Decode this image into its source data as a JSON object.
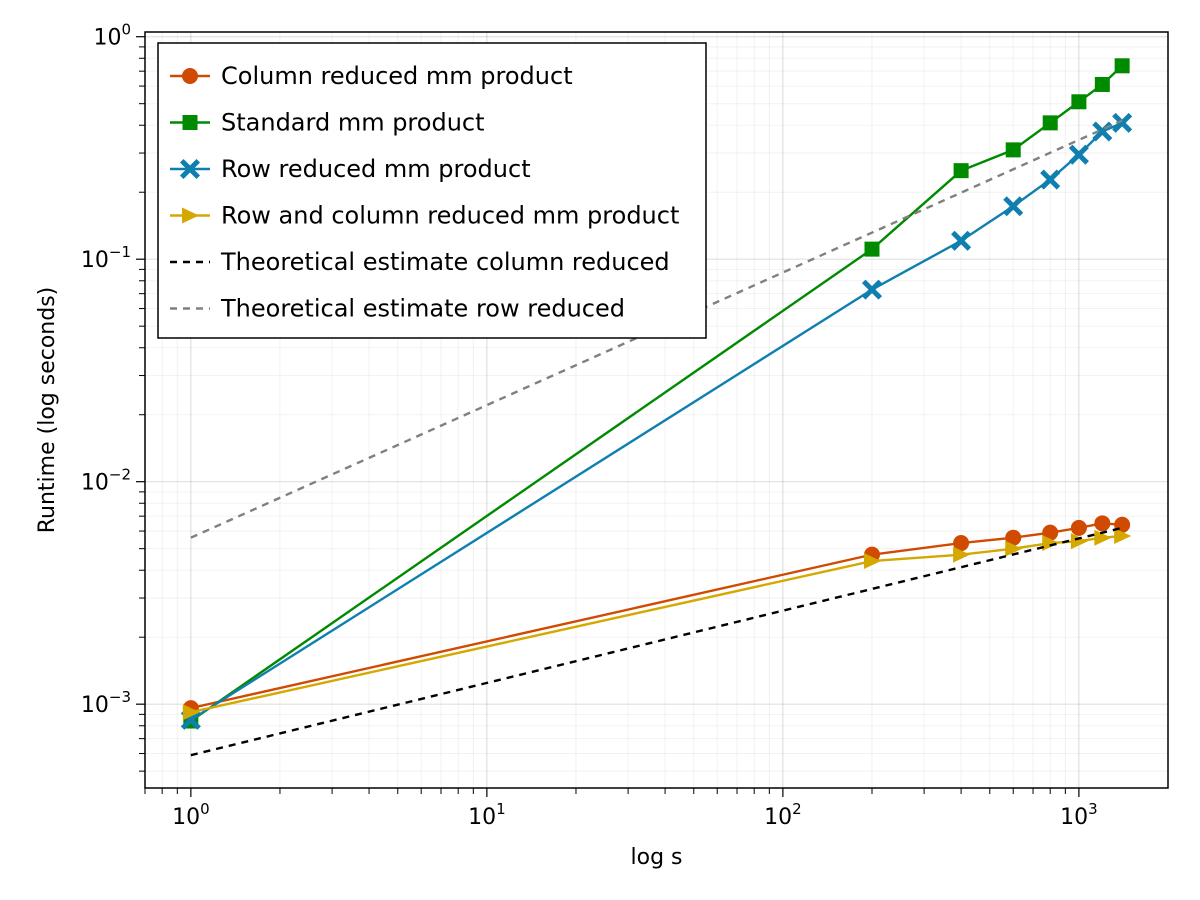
{
  "chart_data": {
    "type": "line",
    "title": "",
    "xlabel": "log s",
    "ylabel": "Runtime (log seconds)",
    "xscale": "log",
    "yscale": "log",
    "xlim": [
      0.7,
      2000
    ],
    "ylim": [
      0.00042,
      1.05
    ],
    "grid": true,
    "legend_position": "top-left",
    "x_ticks": [
      {
        "value": 1,
        "base": "10",
        "exp": "0"
      },
      {
        "value": 10,
        "base": "10",
        "exp": "1"
      },
      {
        "value": 100,
        "base": "10",
        "exp": "2"
      },
      {
        "value": 1000,
        "base": "10",
        "exp": "3"
      }
    ],
    "y_ticks": [
      {
        "value": 0.001,
        "base": "10",
        "exp": "−3"
      },
      {
        "value": 0.01,
        "base": "10",
        "exp": "−2"
      },
      {
        "value": 0.1,
        "base": "10",
        "exp": "−1"
      },
      {
        "value": 1,
        "base": "10",
        "exp": "0"
      }
    ],
    "series": [
      {
        "name": "Column reduced mm product",
        "color": "#d04a02",
        "style": "solid",
        "marker": "circle",
        "x": [
          1,
          200,
          400,
          600,
          800,
          1000,
          1200,
          1400
        ],
        "y": [
          0.00096,
          0.0047,
          0.0053,
          0.0056,
          0.0059,
          0.0062,
          0.0065,
          0.0064
        ]
      },
      {
        "name": "Standard mm product",
        "color": "#008a00",
        "style": "solid",
        "marker": "square",
        "x": [
          1,
          200,
          400,
          600,
          800,
          1000,
          1200,
          1400
        ],
        "y": [
          0.00084,
          0.111,
          0.25,
          0.31,
          0.41,
          0.51,
          0.61,
          0.74
        ]
      },
      {
        "name": "Row reduced mm product",
        "color": "#0f7fb0",
        "style": "solid",
        "marker": "x",
        "x": [
          1,
          200,
          400,
          600,
          800,
          1000,
          1200,
          1400
        ],
        "y": [
          0.00085,
          0.073,
          0.121,
          0.173,
          0.228,
          0.295,
          0.375,
          0.41
        ]
      },
      {
        "name": "Row and column reduced mm product",
        "color": "#d4a800",
        "style": "solid",
        "marker": "triangle-right",
        "x": [
          1,
          200,
          400,
          600,
          800,
          1000,
          1200,
          1400
        ],
        "y": [
          0.00092,
          0.0044,
          0.0047,
          0.005,
          0.0053,
          0.0054,
          0.0056,
          0.0057
        ]
      },
      {
        "name": "Theoretical estimate column reduced",
        "color": "#000000",
        "style": "dashed",
        "marker": "none",
        "x": [
          1,
          1400
        ],
        "y": [
          0.00059,
          0.0062
        ]
      },
      {
        "name": "Theoretical estimate row reduced",
        "color": "#808080",
        "style": "dashed",
        "marker": "none",
        "x": [
          1,
          1400
        ],
        "y": [
          0.0056,
          0.42
        ]
      }
    ]
  }
}
